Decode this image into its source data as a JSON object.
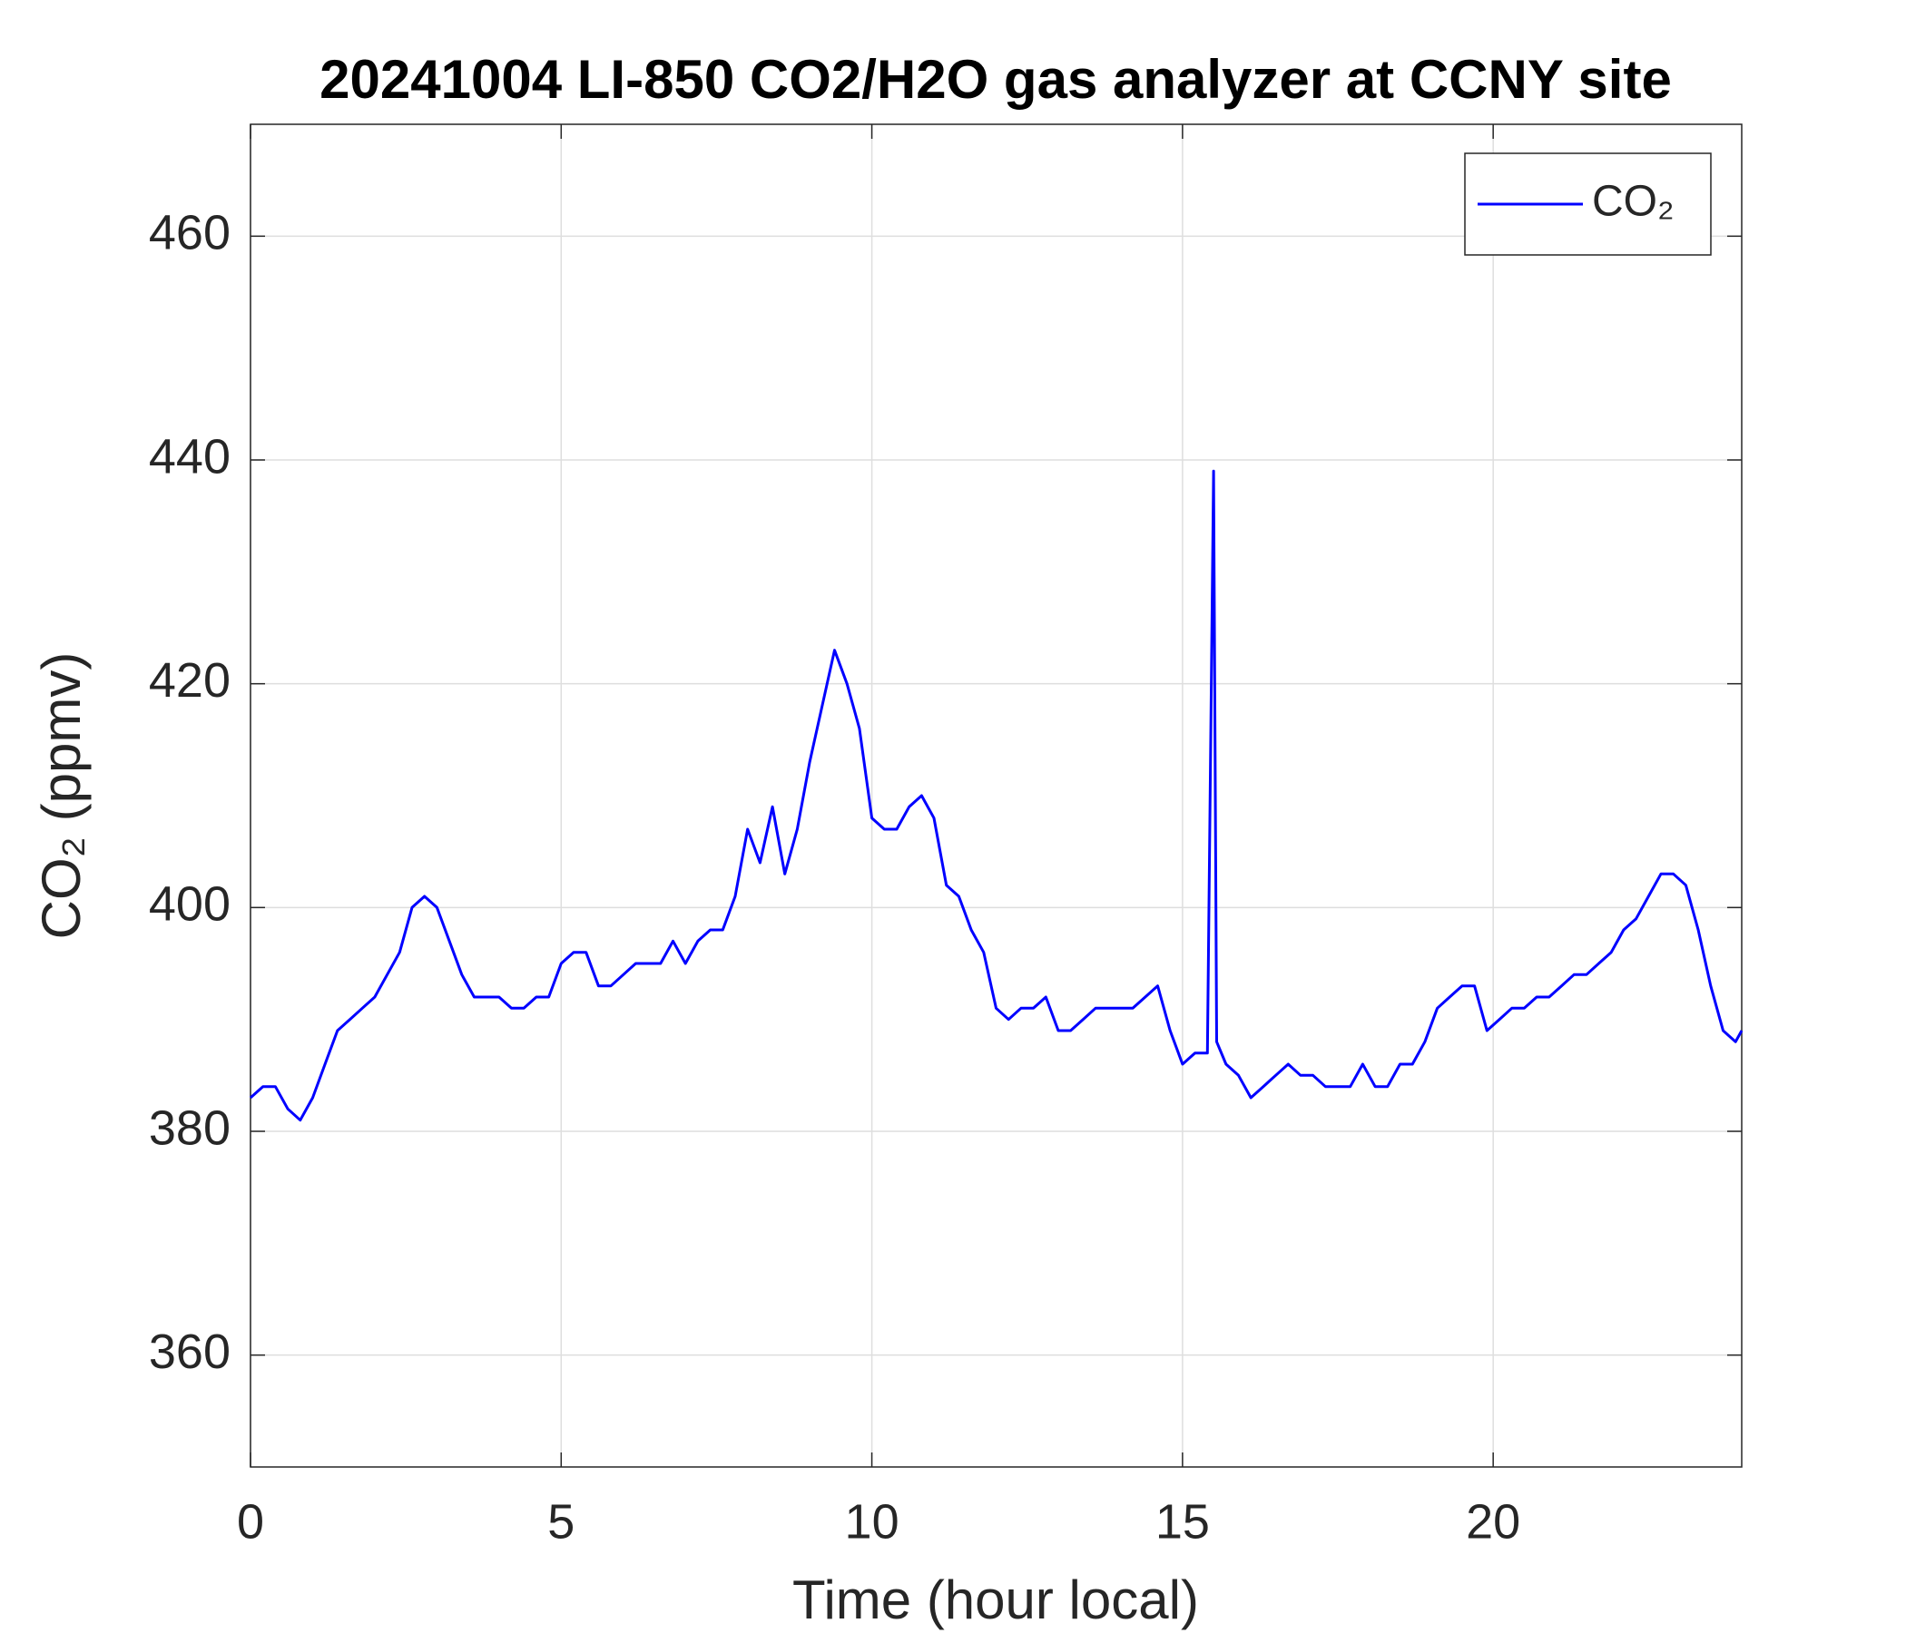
{
  "chart_data": {
    "type": "line",
    "title": "20241004 LI-850 CO2/H2O gas analyzer at CCNY site",
    "xlabel": "Time (hour local)",
    "ylabel": "CO₂ (ppmv)",
    "x": [
      0,
      0.2,
      0.4,
      0.6,
      0.8,
      1.0,
      1.2,
      1.4,
      1.6,
      1.8,
      2.0,
      2.2,
      2.4,
      2.6,
      2.8,
      3.0,
      3.2,
      3.4,
      3.6,
      3.8,
      4.0,
      4.2,
      4.4,
      4.6,
      4.8,
      5.0,
      5.2,
      5.4,
      5.6,
      5.8,
      6.0,
      6.2,
      6.4,
      6.6,
      6.8,
      7.0,
      7.2,
      7.4,
      7.6,
      7.8,
      8.0,
      8.2,
      8.4,
      8.6,
      8.8,
      9.0,
      9.2,
      9.4,
      9.6,
      9.8,
      10.0,
      10.2,
      10.4,
      10.6,
      10.8,
      11.0,
      11.2,
      11.4,
      11.6,
      11.8,
      12.0,
      12.2,
      12.4,
      12.6,
      12.8,
      13.0,
      13.2,
      13.4,
      13.6,
      13.8,
      14.0,
      14.2,
      14.4,
      14.6,
      14.8,
      15.0,
      15.2,
      15.4,
      15.5,
      15.55,
      15.7,
      15.9,
      16.1,
      16.3,
      16.5,
      16.7,
      16.9,
      17.1,
      17.3,
      17.5,
      17.7,
      17.9,
      18.1,
      18.3,
      18.5,
      18.7,
      18.9,
      19.1,
      19.3,
      19.5,
      19.7,
      19.9,
      20.1,
      20.3,
      20.5,
      20.7,
      20.9,
      21.1,
      21.3,
      21.5,
      21.7,
      21.9,
      22.1,
      22.3,
      22.5,
      22.7,
      22.9,
      23.1,
      23.3,
      23.5,
      23.7,
      23.9,
      24.0
    ],
    "series": [
      {
        "name": "CO₂",
        "color": "#0000ff",
        "values": [
          383,
          384,
          384,
          382,
          381,
          383,
          386,
          389,
          390,
          391,
          392,
          394,
          396,
          400,
          401,
          400,
          397,
          394,
          392,
          392,
          392,
          391,
          391,
          392,
          392,
          395,
          396,
          396,
          393,
          393,
          394,
          395,
          395,
          395,
          397,
          395,
          397,
          398,
          398,
          401,
          407,
          404,
          409,
          403,
          407,
          413,
          418,
          423,
          420,
          416,
          408,
          407,
          407,
          409,
          410,
          408,
          402,
          401,
          398,
          396,
          391,
          390,
          391,
          391,
          392,
          389,
          389,
          390,
          391,
          391,
          391,
          391,
          392,
          393,
          389,
          386,
          387,
          387,
          439,
          388,
          386,
          385,
          383,
          384,
          385,
          386,
          385,
          385,
          384,
          384,
          384,
          386,
          384,
          384,
          386,
          386,
          388,
          391,
          392,
          393,
          393,
          389,
          390,
          391,
          391,
          392,
          392,
          393,
          394,
          394,
          395,
          396,
          398,
          399,
          401,
          403,
          403,
          402,
          398,
          393,
          389,
          388,
          389
        ]
      }
    ],
    "xlim": [
      0,
      24
    ],
    "xticks": [
      0,
      5,
      10,
      15,
      20
    ],
    "ylim": [
      350,
      470
    ],
    "yticks": [
      360,
      380,
      400,
      420,
      440,
      460
    ],
    "grid": true,
    "legend": "upper right"
  }
}
